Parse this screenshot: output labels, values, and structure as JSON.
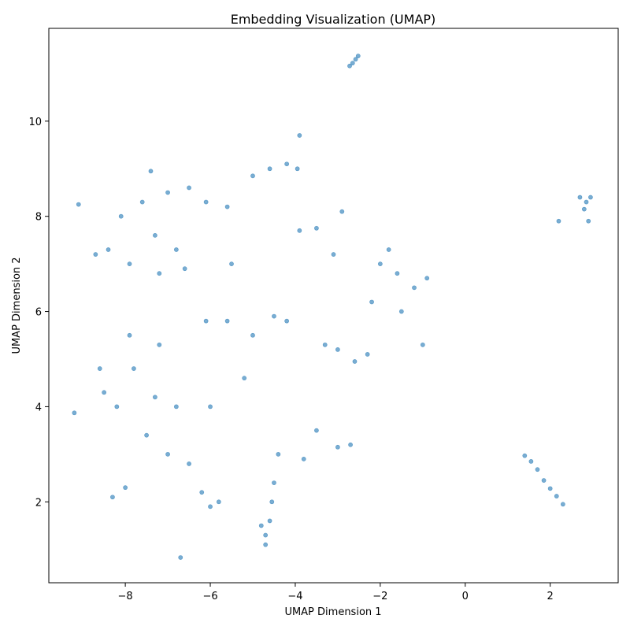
{
  "chart_data": {
    "type": "scatter",
    "title": "Embedding Visualization (UMAP)",
    "xlabel": "UMAP Dimension 1",
    "ylabel": "UMAP Dimension 2",
    "xlim": [
      -9.8,
      3.6
    ],
    "ylim": [
      0.3,
      11.95
    ],
    "xticks": [
      -8,
      -6,
      -4,
      -2,
      0,
      2
    ],
    "yticks": [
      2,
      4,
      6,
      8,
      10
    ],
    "xtick_labels": [
      "−8",
      "−6",
      "−4",
      "−2",
      "0",
      "2"
    ],
    "ytick_labels": [
      "2",
      "4",
      "6",
      "8",
      "10"
    ],
    "grid": false,
    "legend": "none",
    "marker_color": "#1f77b4",
    "marker_alpha": 0.6,
    "series": [
      {
        "points": [
          [
            -2.72,
            11.16
          ],
          [
            -2.65,
            11.22
          ],
          [
            -2.58,
            11.3
          ],
          [
            -2.52,
            11.37
          ],
          [
            -3.9,
            9.7
          ],
          [
            -9.2,
            3.87
          ],
          [
            -6.7,
            0.83
          ],
          [
            -7.4,
            8.95
          ],
          [
            -3.95,
            9.0
          ],
          [
            -4.2,
            9.1
          ],
          [
            1.4,
            2.97
          ],
          [
            1.55,
            2.85
          ],
          [
            1.7,
            2.68
          ],
          [
            1.85,
            2.45
          ],
          [
            2.0,
            2.28
          ],
          [
            2.15,
            2.12
          ],
          [
            2.3,
            1.95
          ],
          [
            2.7,
            8.4
          ],
          [
            2.85,
            8.3
          ],
          [
            2.95,
            8.4
          ],
          [
            2.8,
            8.15
          ],
          [
            2.9,
            7.9
          ],
          [
            2.2,
            7.9
          ],
          [
            -8.1,
            8.0
          ],
          [
            -7.6,
            8.3
          ],
          [
            -7.0,
            8.5
          ],
          [
            -6.5,
            8.6
          ],
          [
            -6.1,
            8.3
          ],
          [
            -7.3,
            7.6
          ],
          [
            -6.8,
            7.3
          ],
          [
            -8.4,
            7.3
          ],
          [
            -7.9,
            7.0
          ],
          [
            -7.2,
            6.8
          ],
          [
            -6.6,
            6.9
          ],
          [
            -8.7,
            7.2
          ],
          [
            -9.1,
            8.25
          ],
          [
            -5.6,
            8.2
          ],
          [
            -5.5,
            7.0
          ],
          [
            -8.5,
            4.3
          ],
          [
            -8.2,
            4.0
          ],
          [
            -7.8,
            4.8
          ],
          [
            -7.3,
            4.2
          ],
          [
            -8.6,
            4.8
          ],
          [
            -7.5,
            3.4
          ],
          [
            -7.0,
            3.0
          ],
          [
            -8.0,
            2.3
          ],
          [
            -8.3,
            2.1
          ],
          [
            -7.9,
            5.5
          ],
          [
            -7.2,
            5.3
          ],
          [
            -6.8,
            4.0
          ],
          [
            -6.5,
            2.8
          ],
          [
            -6.2,
            2.2
          ],
          [
            -6.0,
            1.9
          ],
          [
            -5.8,
            2.0
          ],
          [
            -4.7,
            1.3
          ],
          [
            -4.6,
            1.6
          ],
          [
            -4.55,
            2.0
          ],
          [
            -4.7,
            1.1
          ],
          [
            -4.8,
            1.5
          ],
          [
            -4.5,
            2.4
          ],
          [
            -4.5,
            5.9
          ],
          [
            -4.2,
            5.8
          ],
          [
            -5.0,
            5.5
          ],
          [
            -5.6,
            5.8
          ],
          [
            -6.1,
            5.8
          ],
          [
            -3.9,
            7.7
          ],
          [
            -3.5,
            7.75
          ],
          [
            -3.3,
            5.3
          ],
          [
            -3.0,
            5.2
          ],
          [
            -3.5,
            3.5
          ],
          [
            -3.0,
            3.15
          ],
          [
            -2.7,
            3.2
          ],
          [
            -2.6,
            4.95
          ],
          [
            -2.3,
            5.1
          ],
          [
            -2.0,
            7.0
          ],
          [
            -1.6,
            6.8
          ],
          [
            -1.2,
            6.5
          ],
          [
            -0.9,
            6.7
          ],
          [
            -1.5,
            6.0
          ],
          [
            -2.2,
            6.2
          ],
          [
            -1.8,
            7.3
          ],
          [
            -1.0,
            5.3
          ],
          [
            -5.0,
            8.85
          ],
          [
            -4.6,
            9.0
          ],
          [
            -3.1,
            7.2
          ],
          [
            -2.9,
            8.1
          ],
          [
            -6.0,
            4.0
          ],
          [
            -5.2,
            4.6
          ],
          [
            -4.4,
            3.0
          ],
          [
            -3.8,
            2.9
          ]
        ]
      }
    ]
  }
}
